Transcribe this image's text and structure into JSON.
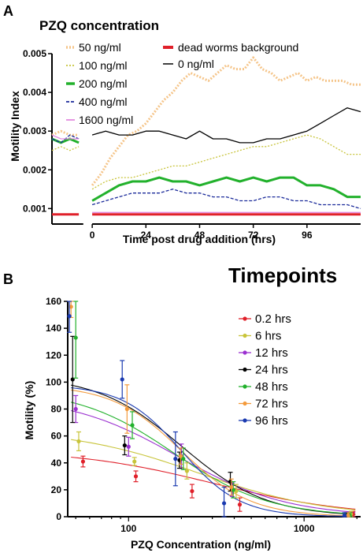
{
  "chart_data": [
    {
      "panel": "A",
      "type": "line",
      "title": "PZQ concentration",
      "xlabel": "Time post drug addition (hrs)",
      "ylabel": "Motility Index",
      "xlim": [
        -18,
        120
      ],
      "ylim": [
        0.0006,
        0.005
      ],
      "xticks": [
        0,
        24,
        48,
        72,
        96
      ],
      "yticks": [
        0.001,
        0.002,
        0.003,
        0.004,
        0.005
      ],
      "ytick_labels": [
        "0.001",
        "0.002",
        "0.003",
        "0.004",
        "0.005"
      ],
      "grid": false,
      "legend_position": "top-left, inside",
      "series": [
        {
          "name": "50 ng/ml",
          "color": "#f5c58a",
          "style": "dotted-thick",
          "pre_x": [
            -18,
            -14,
            -10,
            -6
          ],
          "pre_y": [
            0.0029,
            0.003,
            0.0029,
            0.0029
          ],
          "x": [
            0,
            4,
            8,
            12,
            16,
            20,
            24,
            28,
            32,
            36,
            40,
            44,
            48,
            52,
            56,
            60,
            64,
            68,
            72,
            76,
            80,
            84,
            88,
            92,
            96,
            100,
            104,
            108,
            112,
            116,
            120
          ],
          "y": [
            0.0016,
            0.0019,
            0.0023,
            0.0026,
            0.0029,
            0.003,
            0.0032,
            0.0035,
            0.0038,
            0.004,
            0.0043,
            0.0045,
            0.0044,
            0.0043,
            0.0045,
            0.0047,
            0.0046,
            0.0046,
            0.0049,
            0.0046,
            0.0045,
            0.0043,
            0.0044,
            0.0045,
            0.0043,
            0.0044,
            0.0043,
            0.0043,
            0.0043,
            0.0042,
            0.0042
          ]
        },
        {
          "name": "100 ng/ml",
          "color": "#c8c43a",
          "style": "dotted",
          "pre_x": [
            -18,
            -14,
            -10,
            -6
          ],
          "pre_y": [
            0.0025,
            0.0026,
            0.0025,
            0.0026
          ],
          "x": [
            0,
            6,
            12,
            18,
            24,
            30,
            36,
            42,
            48,
            54,
            60,
            66,
            72,
            78,
            84,
            90,
            96,
            102,
            108,
            114,
            120
          ],
          "y": [
            0.0015,
            0.0017,
            0.0018,
            0.0018,
            0.0019,
            0.002,
            0.0021,
            0.0021,
            0.0022,
            0.0023,
            0.0024,
            0.0025,
            0.0026,
            0.0026,
            0.0027,
            0.0028,
            0.0029,
            0.0028,
            0.0026,
            0.0024,
            0.0024
          ]
        },
        {
          "name": "200 ng/ml",
          "color": "#22b12c",
          "style": "solid-thick",
          "pre_x": [
            -18,
            -14,
            -10,
            -6
          ],
          "pre_y": [
            0.0028,
            0.0027,
            0.0028,
            0.0027
          ],
          "x": [
            0,
            6,
            12,
            18,
            24,
            30,
            36,
            42,
            48,
            54,
            60,
            66,
            72,
            78,
            84,
            90,
            96,
            102,
            108,
            114,
            120
          ],
          "y": [
            0.0012,
            0.0014,
            0.0016,
            0.0017,
            0.0017,
            0.0018,
            0.0017,
            0.0017,
            0.0016,
            0.0017,
            0.0018,
            0.0017,
            0.0018,
            0.0017,
            0.0018,
            0.0018,
            0.0016,
            0.0016,
            0.0015,
            0.0013,
            0.0013
          ]
        },
        {
          "name": "400 ng/ml",
          "color": "#1a2a9a",
          "style": "dashed",
          "pre_x": [
            -18,
            -14,
            -10,
            -6
          ],
          "pre_y": [
            0.0028,
            0.0027,
            0.0029,
            0.0028
          ],
          "x": [
            0,
            6,
            12,
            18,
            24,
            30,
            36,
            42,
            48,
            54,
            60,
            66,
            72,
            78,
            84,
            90,
            96,
            102,
            108,
            114,
            120
          ],
          "y": [
            0.0011,
            0.0012,
            0.0013,
            0.0014,
            0.0014,
            0.0014,
            0.0015,
            0.0014,
            0.0014,
            0.0013,
            0.0013,
            0.0012,
            0.0012,
            0.0013,
            0.0013,
            0.0012,
            0.0012,
            0.0011,
            0.0011,
            0.0011,
            0.001
          ]
        },
        {
          "name": "1600 ng/ml",
          "color": "#e38be0",
          "style": "solid",
          "pre_x": [
            -18,
            -14,
            -10,
            -6
          ],
          "pre_y": [
            0.0029,
            0.0028,
            0.0028,
            0.0028
          ],
          "x": [
            0,
            20,
            40,
            60,
            80,
            100,
            120
          ],
          "y": [
            0.0009,
            0.0009,
            0.0009,
            0.0009,
            0.0009,
            0.0009,
            0.0009
          ]
        },
        {
          "name": "dead worms background",
          "color": "#e0202a",
          "style": "solid-thick",
          "pre_x": [
            -18,
            -14,
            -10,
            -6
          ],
          "pre_y": [
            0.00085,
            0.00085,
            0.00085,
            0.00085
          ],
          "x": [
            0,
            20,
            40,
            60,
            80,
            100,
            120
          ],
          "y": [
            0.00085,
            0.00085,
            0.00085,
            0.00085,
            0.00085,
            0.00085,
            0.00085
          ]
        },
        {
          "name": "0 ng/ml",
          "color": "#000000",
          "style": "solid",
          "pre_x": [],
          "pre_y": [],
          "x": [
            0,
            6,
            12,
            18,
            24,
            30,
            36,
            42,
            48,
            54,
            60,
            66,
            72,
            78,
            84,
            90,
            96,
            102,
            108,
            114,
            120
          ],
          "y": [
            0.0029,
            0.003,
            0.0029,
            0.0029,
            0.003,
            0.003,
            0.0029,
            0.0028,
            0.003,
            0.0028,
            0.0028,
            0.0027,
            0.0027,
            0.0028,
            0.0028,
            0.0029,
            0.003,
            0.0032,
            0.0034,
            0.0036,
            0.0035
          ]
        }
      ]
    },
    {
      "panel": "B",
      "type": "scatter",
      "title": "Timepoints",
      "xlabel": "PZQ Concentration (ng/ml)",
      "ylabel": "Motility (%)",
      "xscale": "log",
      "xlim": [
        45,
        2100
      ],
      "ylim": [
        0,
        160
      ],
      "xticks": [
        100,
        1000
      ],
      "xtick_labels": [
        "100",
        "1000"
      ],
      "yticks": [
        0,
        20,
        40,
        60,
        80,
        100,
        120,
        140,
        160
      ],
      "ytick_labels": [
        "0",
        "20",
        "40",
        "60",
        "80",
        "100",
        "120",
        "140",
        "160"
      ],
      "grid": false,
      "legend_position": "right, inside",
      "series": [
        {
          "name": "0.2 hrs",
          "color": "#e0202a",
          "x": [
            55,
            110,
            230,
            430,
            1900
          ],
          "y": [
            41,
            30,
            19,
            9,
            2
          ],
          "err": [
            4,
            4,
            5,
            5,
            2
          ],
          "fit": {
            "top": 50,
            "bottom": 0,
            "ec50": 300,
            "hill": 1.1
          }
        },
        {
          "name": "6 hrs",
          "color": "#c8c43a",
          "x": [
            52,
            108,
            215,
            410,
            1850
          ],
          "y": [
            56,
            41,
            34,
            19,
            2
          ],
          "err": [
            7,
            3,
            6,
            5,
            2
          ],
          "fit": {
            "top": 65,
            "bottom": 0,
            "ec50": 250,
            "hill": 1.2
          }
        },
        {
          "name": "12 hrs",
          "color": "#9b30d0",
          "x": [
            50,
            100,
            200,
            390,
            1800
          ],
          "y": [
            80,
            52,
            45,
            20,
            1
          ],
          "err": [
            10,
            7,
            9,
            5,
            2
          ],
          "fit": {
            "top": 90,
            "bottom": 0,
            "ec50": 190,
            "hill": 1.4
          }
        },
        {
          "name": "24 hrs",
          "color": "#000000",
          "x": [
            48,
            95,
            195,
            380,
            1750
          ],
          "y": [
            102,
            53,
            42,
            26,
            1
          ],
          "err": [
            32,
            7,
            6,
            7,
            2
          ],
          "fit": {
            "top": 105,
            "bottom": 0,
            "ec50": 200,
            "hill": 1.8
          }
        },
        {
          "name": "48 hrs",
          "color": "#22b12c",
          "x": [
            50,
            105,
            205,
            395,
            1820
          ],
          "y": [
            133,
            68,
            43,
            20,
            1
          ],
          "err": [
            30,
            10,
            8,
            6,
            2
          ],
          "fit": {
            "top": 95,
            "bottom": 0,
            "ec50": 180,
            "hill": 1.6
          }
        },
        {
          "name": "72 hrs",
          "color": "#f39a3c",
          "x": [
            47,
            98,
            198,
            385,
            1780
          ],
          "y": [
            156,
            80,
            45,
            22,
            1
          ],
          "err": [
            8,
            18,
            6,
            6,
            2
          ],
          "fit": {
            "top": 98,
            "bottom": 0,
            "ec50": 200,
            "hill": 2.2
          }
        },
        {
          "name": "96 hrs",
          "color": "#1a3ab0",
          "x": [
            46,
            92,
            185,
            350,
            1700
          ],
          "y": [
            149,
            102,
            43,
            10,
            1
          ],
          "err": [
            12,
            14,
            20,
            12,
            2
          ],
          "fit": {
            "top": 98,
            "bottom": 0,
            "ec50": 200,
            "hill": 2.6
          }
        }
      ]
    }
  ],
  "panels": {
    "a_label": "A",
    "b_label": "B"
  },
  "legend_a": {
    "title": "PZQ concentration",
    "items": [
      "50 ng/ml",
      "100 ng/ml",
      "200 ng/ml",
      "400 ng/ml",
      "1600 ng/ml",
      "dead worms background",
      "0 ng/ml"
    ]
  },
  "legend_b": {
    "title": "Timepoints",
    "items": [
      "0.2 hrs",
      "6 hrs",
      "12 hrs",
      "24 hrs",
      "48 hrs",
      "72 hrs",
      "96 hrs"
    ]
  }
}
